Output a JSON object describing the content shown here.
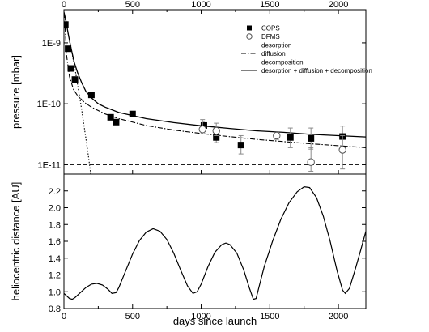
{
  "chart_data": [
    {
      "type": "scatter",
      "panel": "top",
      "xlabel": "",
      "ylabel": "pressure [mbar]",
      "xlim": [
        0,
        2200
      ],
      "ylim": [
        7e-12,
        3.5e-09
      ],
      "yscale": "log",
      "x_ticks": [
        0,
        500,
        1000,
        1500,
        2000
      ],
      "y_ticks": [
        {
          "value": 1e-11,
          "label": "1E-11"
        },
        {
          "value": 1e-10,
          "label": "1E-10"
        },
        {
          "value": 1e-09,
          "label": "1E-9"
        }
      ],
      "legend_position": "top-right",
      "series": [
        {
          "name": "COPS",
          "kind": "markers",
          "marker": "filled-square",
          "points": [
            {
              "x": 10,
              "y": 2e-09
            },
            {
              "x": 30,
              "y": 8e-10
            },
            {
              "x": 50,
              "y": 3.8e-10
            },
            {
              "x": 80,
              "y": 2.5e-10
            },
            {
              "x": 200,
              "y": 1.4e-10
            },
            {
              "x": 340,
              "y": 6e-11
            },
            {
              "x": 380,
              "y": 5e-11
            },
            {
              "x": 500,
              "y": 6.8e-11
            },
            {
              "x": 1020,
              "y": 4.4e-11,
              "err": [
                3.8e-11,
                5.2e-11
              ]
            },
            {
              "x": 1110,
              "y": 2.8e-11,
              "err": [
                2.3e-11,
                3.4e-11
              ]
            },
            {
              "x": 1290,
              "y": 2.1e-11,
              "err": [
                1.5e-11,
                3e-11
              ]
            },
            {
              "x": 1650,
              "y": 2.8e-11,
              "err": [
                1.9e-11,
                4e-11
              ]
            },
            {
              "x": 1800,
              "y": 2.7e-11,
              "err": [
                1.8e-11,
                4e-11
              ]
            },
            {
              "x": 2030,
              "y": 2.9e-11,
              "err": [
                1.9e-11,
                4.3e-11
              ]
            }
          ]
        },
        {
          "name": "DFMS",
          "kind": "markers",
          "marker": "open-circle",
          "points": [
            {
              "x": 1010,
              "y": 3.8e-11,
              "err": [
                3.2e-11,
                5.5e-11
              ]
            },
            {
              "x": 1110,
              "y": 3.6e-11,
              "err": [
                3e-11,
                4.8e-11
              ]
            },
            {
              "x": 1550,
              "y": 3e-11,
              "err": [
                2.6e-11,
                3.4e-11
              ]
            },
            {
              "x": 1800,
              "y": 1.1e-11,
              "err": [
                7.8e-12,
                1.9e-11
              ]
            },
            {
              "x": 2030,
              "y": 1.75e-11,
              "err": [
                8.5e-12,
                3e-11
              ]
            }
          ]
        },
        {
          "name": "desorption",
          "kind": "line",
          "dash": "dotted",
          "points": [
            {
              "x": 0,
              "y": 3e-09
            },
            {
              "x": 20,
              "y": 1.9e-09
            },
            {
              "x": 40,
              "y": 1.1e-09
            },
            {
              "x": 60,
              "y": 6.5e-10
            },
            {
              "x": 80,
              "y": 3.8e-10
            },
            {
              "x": 100,
              "y": 2e-10
            },
            {
              "x": 120,
              "y": 1.1e-10
            },
            {
              "x": 140,
              "y": 5.5e-11
            },
            {
              "x": 160,
              "y": 2.7e-11
            },
            {
              "x": 180,
              "y": 1.3e-11
            },
            {
              "x": 195,
              "y": 7e-12
            }
          ]
        },
        {
          "name": "diffusion",
          "kind": "line",
          "dash": "dash-dot",
          "points": [
            {
              "x": 8,
              "y": 1.8e-09
            },
            {
              "x": 20,
              "y": 6e-10
            },
            {
              "x": 40,
              "y": 2.8e-10
            },
            {
              "x": 70,
              "y": 1.7e-10
            },
            {
              "x": 100,
              "y": 1.35e-10
            },
            {
              "x": 150,
              "y": 1.05e-10
            },
            {
              "x": 200,
              "y": 8.8e-11
            },
            {
              "x": 300,
              "y": 6.8e-11
            },
            {
              "x": 400,
              "y": 5.7e-11
            },
            {
              "x": 600,
              "y": 4.4e-11
            },
            {
              "x": 800,
              "y": 3.7e-11
            },
            {
              "x": 1000,
              "y": 3.25e-11
            },
            {
              "x": 1200,
              "y": 2.9e-11
            },
            {
              "x": 1400,
              "y": 2.6e-11
            },
            {
              "x": 1600,
              "y": 2.4e-11
            },
            {
              "x": 1800,
              "y": 2.2e-11
            },
            {
              "x": 2000,
              "y": 2.05e-11
            },
            {
              "x": 2200,
              "y": 1.9e-11
            }
          ]
        },
        {
          "name": "decomposition",
          "kind": "line",
          "dash": "dashed",
          "points": [
            {
              "x": 0,
              "y": 1e-11
            },
            {
              "x": 2200,
              "y": 1e-11
            }
          ]
        },
        {
          "name": "desorption + diffusion + decomposition",
          "kind": "line",
          "dash": "solid",
          "points": [
            {
              "x": 0,
              "y": 3.2e-09
            },
            {
              "x": 15,
              "y": 2.3e-09
            },
            {
              "x": 30,
              "y": 1.45e-09
            },
            {
              "x": 50,
              "y": 8.5e-10
            },
            {
              "x": 75,
              "y": 4.8e-10
            },
            {
              "x": 100,
              "y": 3.2e-10
            },
            {
              "x": 130,
              "y": 2.2e-10
            },
            {
              "x": 160,
              "y": 1.6e-10
            },
            {
              "x": 200,
              "y": 1.25e-10
            },
            {
              "x": 250,
              "y": 1e-10
            },
            {
              "x": 300,
              "y": 8.8e-11
            },
            {
              "x": 400,
              "y": 7.2e-11
            },
            {
              "x": 600,
              "y": 5.7e-11
            },
            {
              "x": 800,
              "y": 4.9e-11
            },
            {
              "x": 1000,
              "y": 4.35e-11
            },
            {
              "x": 1200,
              "y": 3.95e-11
            },
            {
              "x": 1400,
              "y": 3.6e-11
            },
            {
              "x": 1600,
              "y": 3.4e-11
            },
            {
              "x": 1800,
              "y": 3.15e-11
            },
            {
              "x": 2000,
              "y": 3e-11
            },
            {
              "x": 2200,
              "y": 2.85e-11
            }
          ]
        }
      ]
    },
    {
      "type": "line",
      "panel": "bottom",
      "xlabel": "days since launch",
      "ylabel": "heliocentric distance [AU]",
      "xlim": [
        0,
        2200
      ],
      "ylim": [
        0.8,
        2.4
      ],
      "x_ticks": [
        0,
        500,
        1000,
        1500,
        2000
      ],
      "y_ticks": [
        {
          "value": 0.8,
          "label": "0.8"
        },
        {
          "value": 1.0,
          "label": "1.0"
        },
        {
          "value": 1.2,
          "label": "1.2"
        },
        {
          "value": 1.4,
          "label": "1.4"
        },
        {
          "value": 1.6,
          "label": "1.6"
        },
        {
          "value": 1.8,
          "label": "1.8"
        },
        {
          "value": 2.0,
          "label": "2.0"
        },
        {
          "value": 2.2,
          "label": "2.2"
        }
      ],
      "series": [
        {
          "kind": "line",
          "dash": "solid",
          "points": [
            {
              "x": 0,
              "y": 0.98
            },
            {
              "x": 20,
              "y": 0.95
            },
            {
              "x": 40,
              "y": 0.92
            },
            {
              "x": 60,
              "y": 0.91
            },
            {
              "x": 80,
              "y": 0.93
            },
            {
              "x": 120,
              "y": 0.99
            },
            {
              "x": 160,
              "y": 1.05
            },
            {
              "x": 200,
              "y": 1.09
            },
            {
              "x": 240,
              "y": 1.1
            },
            {
              "x": 280,
              "y": 1.08
            },
            {
              "x": 320,
              "y": 1.03
            },
            {
              "x": 350,
              "y": 0.98
            },
            {
              "x": 380,
              "y": 0.99
            },
            {
              "x": 400,
              "y": 1.05
            },
            {
              "x": 450,
              "y": 1.25
            },
            {
              "x": 500,
              "y": 1.45
            },
            {
              "x": 550,
              "y": 1.61
            },
            {
              "x": 600,
              "y": 1.71
            },
            {
              "x": 650,
              "y": 1.75
            },
            {
              "x": 700,
              "y": 1.72
            },
            {
              "x": 750,
              "y": 1.62
            },
            {
              "x": 800,
              "y": 1.46
            },
            {
              "x": 850,
              "y": 1.26
            },
            {
              "x": 900,
              "y": 1.07
            },
            {
              "x": 940,
              "y": 0.98
            },
            {
              "x": 970,
              "y": 1.0
            },
            {
              "x": 1000,
              "y": 1.09
            },
            {
              "x": 1050,
              "y": 1.3
            },
            {
              "x": 1100,
              "y": 1.47
            },
            {
              "x": 1150,
              "y": 1.56
            },
            {
              "x": 1180,
              "y": 1.58
            },
            {
              "x": 1210,
              "y": 1.56
            },
            {
              "x": 1260,
              "y": 1.46
            },
            {
              "x": 1310,
              "y": 1.26
            },
            {
              "x": 1350,
              "y": 1.05
            },
            {
              "x": 1380,
              "y": 0.91
            },
            {
              "x": 1400,
              "y": 0.92
            },
            {
              "x": 1420,
              "y": 1.05
            },
            {
              "x": 1460,
              "y": 1.3
            },
            {
              "x": 1520,
              "y": 1.6
            },
            {
              "x": 1580,
              "y": 1.86
            },
            {
              "x": 1640,
              "y": 2.06
            },
            {
              "x": 1700,
              "y": 2.19
            },
            {
              "x": 1750,
              "y": 2.25
            },
            {
              "x": 1790,
              "y": 2.24
            },
            {
              "x": 1840,
              "y": 2.12
            },
            {
              "x": 1890,
              "y": 1.9
            },
            {
              "x": 1940,
              "y": 1.6
            },
            {
              "x": 1990,
              "y": 1.25
            },
            {
              "x": 2030,
              "y": 1.02
            },
            {
              "x": 2050,
              "y": 0.98
            },
            {
              "x": 2080,
              "y": 1.04
            },
            {
              "x": 2120,
              "y": 1.25
            },
            {
              "x": 2160,
              "y": 1.48
            },
            {
              "x": 2200,
              "y": 1.72
            }
          ]
        }
      ]
    }
  ]
}
